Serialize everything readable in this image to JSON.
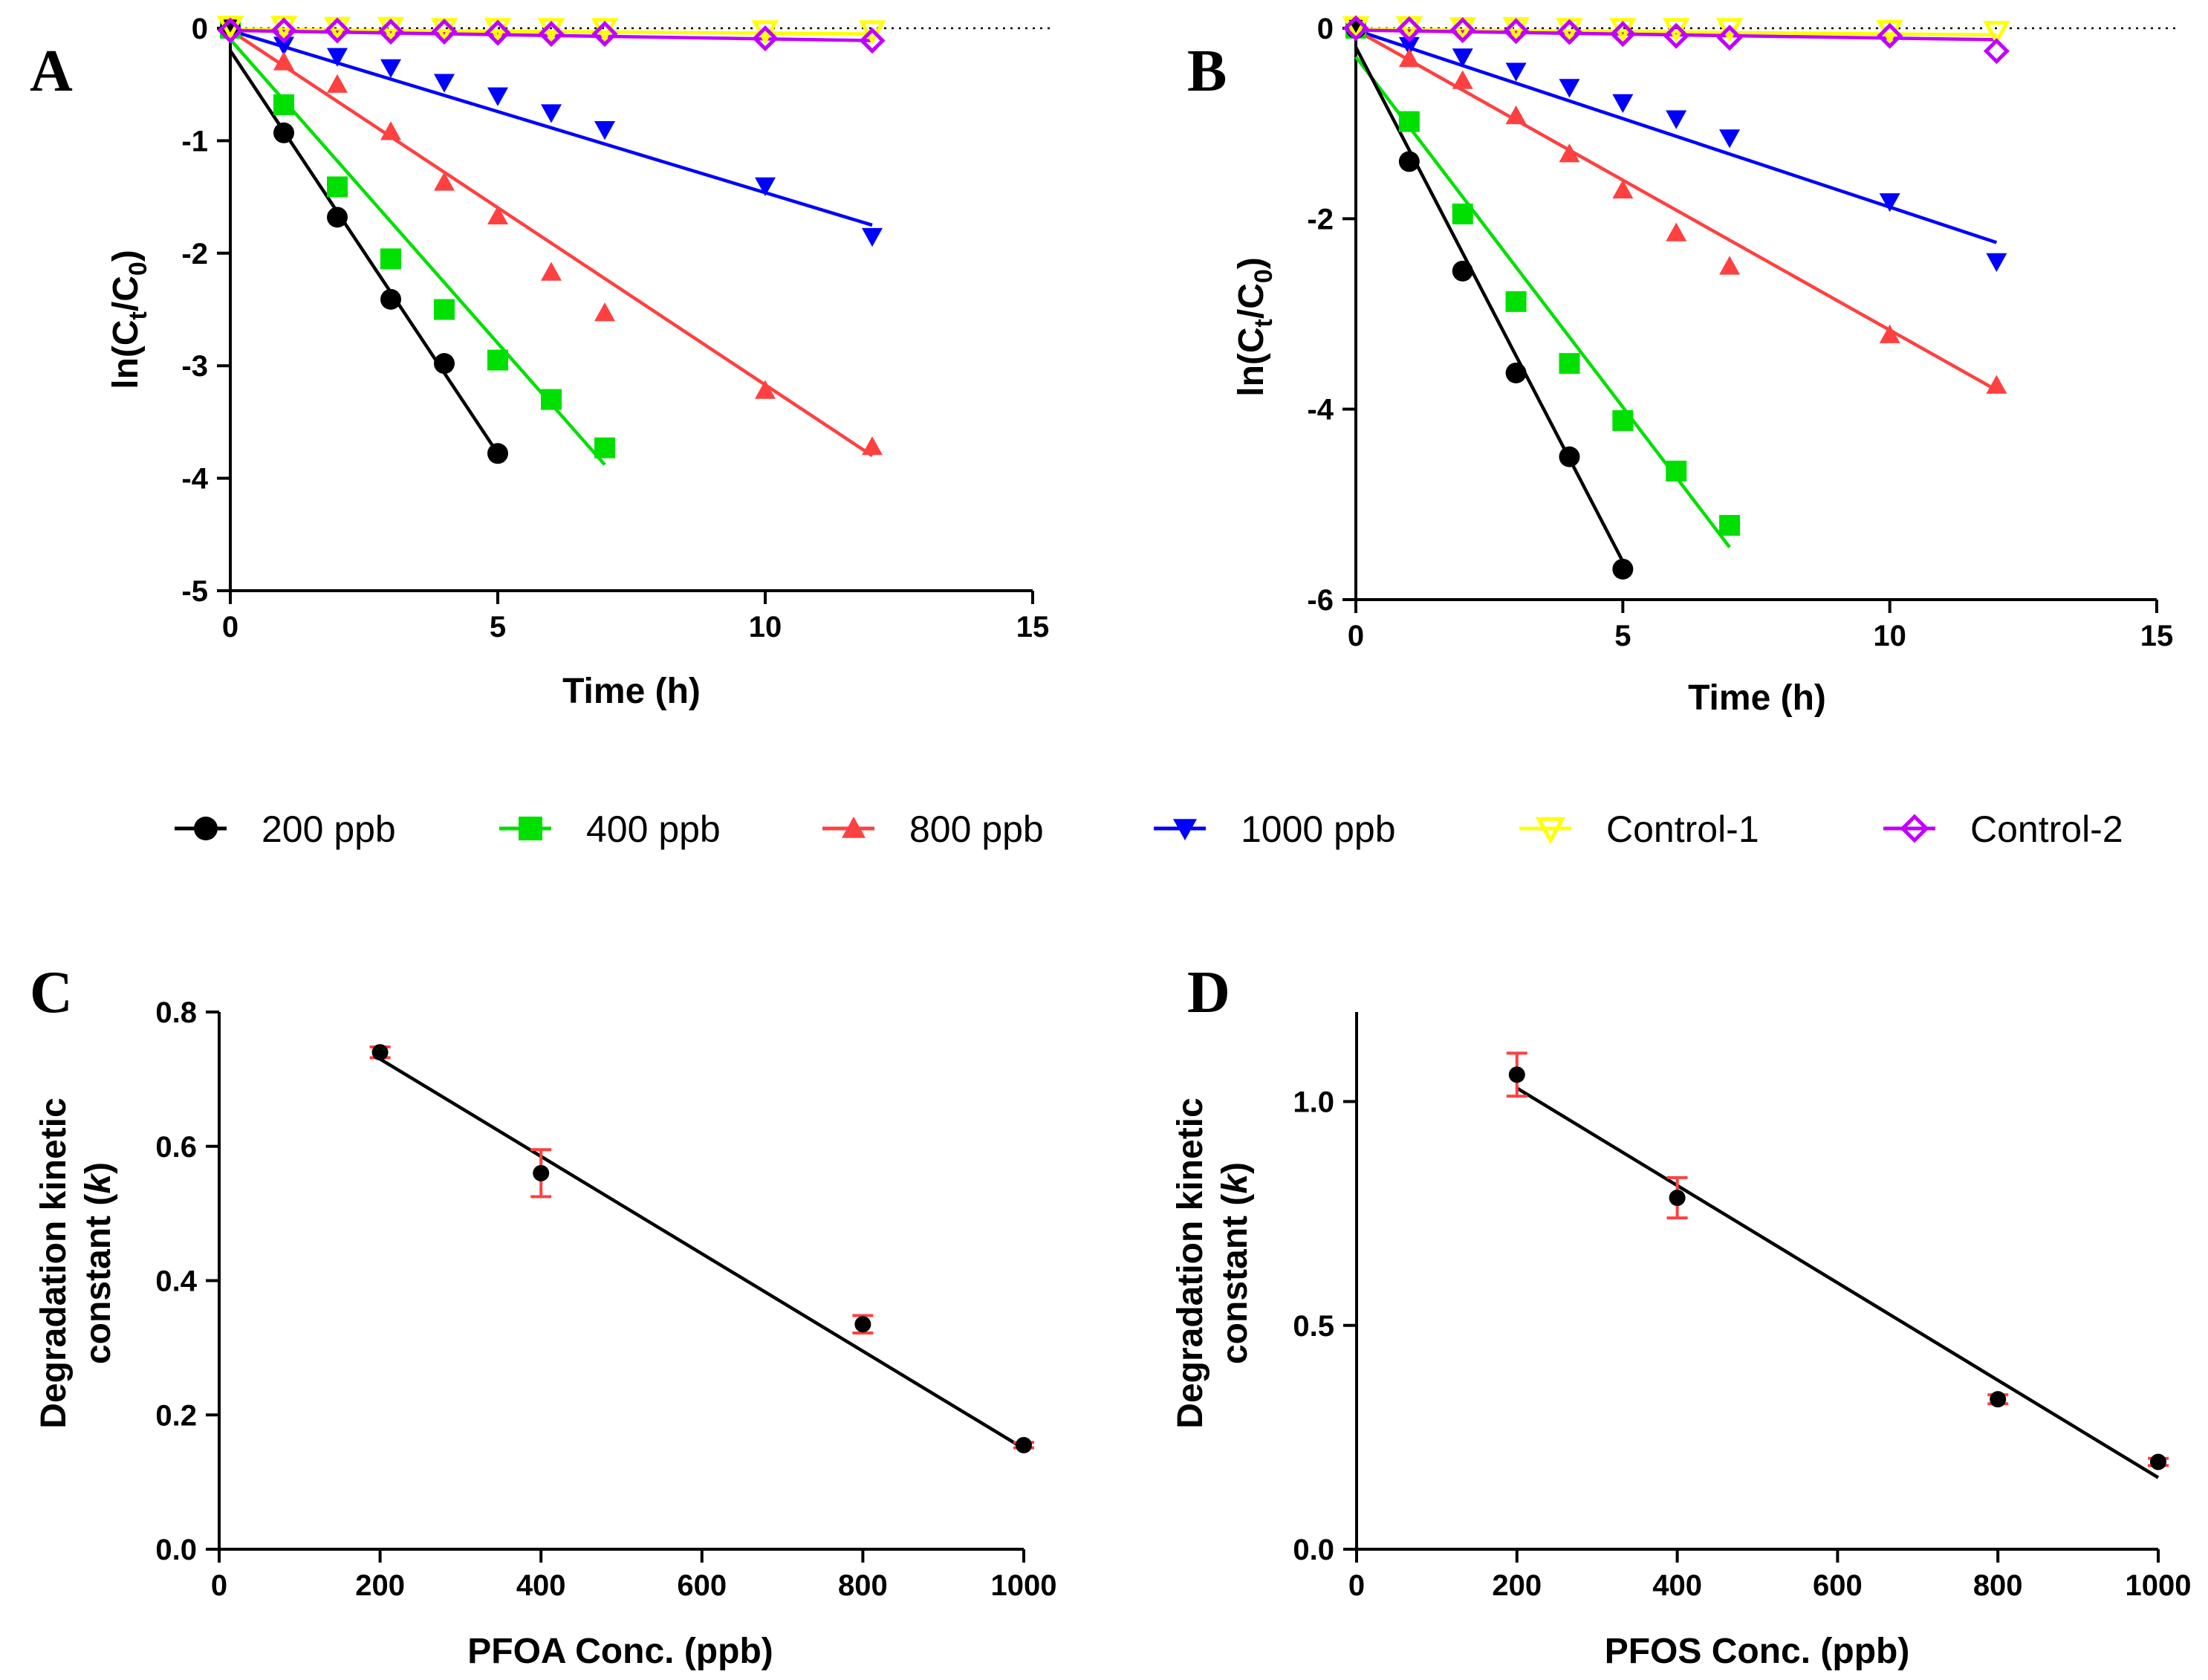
{
  "chart_data": [
    {
      "panel": "A",
      "type": "scatter",
      "xlabel": "Time (h)",
      "ylabel": "ln(Ct/C0)",
      "ylabel_main": "ln(C",
      "ylabel_sub1": "t",
      "ylabel_mid": "/C",
      "ylabel_sub2": "0",
      "ylabel_end": ")",
      "xlim": [
        0,
        15
      ],
      "ylim": [
        -5,
        0
      ],
      "xticks": [
        0,
        5,
        10,
        15
      ],
      "yticks": [
        0,
        -1,
        -2,
        -3,
        -4,
        -5
      ],
      "reference_line_y": 0,
      "series": [
        {
          "name": "200 ppb",
          "color": "#000000",
          "marker": "circle",
          "x": [
            0,
            1,
            2,
            3,
            4,
            5
          ],
          "y": [
            0,
            -0.93,
            -1.68,
            -2.41,
            -2.98,
            -3.78
          ],
          "fit": [
            [
              0,
              -0.2
            ],
            [
              5,
              -3.78
            ]
          ]
        },
        {
          "name": "400 ppb",
          "color": "#00e000",
          "marker": "square",
          "x": [
            0,
            1,
            2,
            3,
            4,
            5,
            6,
            7
          ],
          "y": [
            0,
            -0.68,
            -1.41,
            -2.05,
            -2.5,
            -2.95,
            -3.3,
            -3.73
          ],
          "fit": [
            [
              0,
              -0.1
            ],
            [
              7,
              -3.88
            ]
          ]
        },
        {
          "name": "800 ppb",
          "color": "#ff4040",
          "marker": "triangle-up",
          "x": [
            0,
            1,
            2,
            3,
            4,
            5,
            6,
            7,
            10,
            12
          ],
          "y": [
            0,
            -0.3,
            -0.5,
            -0.92,
            -1.37,
            -1.67,
            -2.17,
            -2.53,
            -3.22,
            -3.72
          ],
          "fit": [
            [
              0,
              -0.02
            ],
            [
              12,
              -3.8
            ]
          ]
        },
        {
          "name": "1000 ppb",
          "color": "#0000ff",
          "marker": "triangle-down",
          "x": [
            1,
            2,
            3,
            4,
            5,
            6,
            7,
            10,
            12
          ],
          "y": [
            -0.15,
            -0.25,
            -0.35,
            -0.48,
            -0.6,
            -0.75,
            -0.9,
            -1.4,
            -1.85
          ],
          "fit": [
            [
              0,
              -0.02
            ],
            [
              12,
              -1.75
            ]
          ]
        },
        {
          "name": "Control-1",
          "color": "#ffff00",
          "marker": "triangle-down-open",
          "x": [
            0,
            1,
            2,
            3,
            4,
            5,
            6,
            7,
            10,
            12
          ],
          "y": [
            0.02,
            0.02,
            0.01,
            0.01,
            0.0,
            0.0,
            0.0,
            0.0,
            -0.02,
            -0.02
          ],
          "fit": [
            [
              0,
              -0.01
            ],
            [
              12,
              -0.05
            ]
          ]
        },
        {
          "name": "Control-2",
          "color": "#c000ff",
          "marker": "diamond-open",
          "x": [
            0,
            1,
            2,
            3,
            4,
            5,
            6,
            7,
            10,
            12
          ],
          "y": [
            -0.02,
            -0.02,
            -0.02,
            -0.03,
            -0.03,
            -0.04,
            -0.05,
            -0.05,
            -0.09,
            -0.11
          ],
          "fit": [
            [
              0,
              -0.02
            ],
            [
              12,
              -0.11
            ]
          ]
        }
      ]
    },
    {
      "panel": "B",
      "type": "scatter",
      "xlabel": "Time (h)",
      "ylabel": "ln(Ct/C0)",
      "ylabel_main": "ln(C",
      "ylabel_sub1": "t",
      "ylabel_mid": "/C",
      "ylabel_sub2": "0",
      "ylabel_end": ")",
      "xlim": [
        0,
        15
      ],
      "ylim": [
        -6,
        0
      ],
      "xticks": [
        0,
        5,
        10,
        15
      ],
      "yticks": [
        0,
        -2,
        -4,
        -6
      ],
      "reference_line_y": 0,
      "series": [
        {
          "name": "200 ppb",
          "color": "#000000",
          "marker": "circle",
          "x": [
            0,
            1,
            2,
            3,
            4,
            5
          ],
          "y": [
            0,
            -1.4,
            -2.55,
            -3.62,
            -4.5,
            -5.68
          ],
          "fit": [
            [
              0,
              -0.2
            ],
            [
              5,
              -5.6
            ]
          ]
        },
        {
          "name": "400 ppb",
          "color": "#00e000",
          "marker": "square",
          "x": [
            0,
            1,
            2,
            3,
            4,
            5,
            6,
            7
          ],
          "y": [
            0,
            -0.98,
            -1.95,
            -2.87,
            -3.52,
            -4.12,
            -4.65,
            -5.22
          ],
          "fit": [
            [
              0,
              -0.3
            ],
            [
              7,
              -5.45
            ]
          ]
        },
        {
          "name": "800 ppb",
          "color": "#ff4040",
          "marker": "triangle-up",
          "x": [
            0,
            1,
            2,
            3,
            4,
            5,
            6,
            7,
            10,
            12
          ],
          "y": [
            0,
            -0.32,
            -0.55,
            -0.92,
            -1.32,
            -1.7,
            -2.15,
            -2.5,
            -3.22,
            -3.75
          ],
          "fit": [
            [
              0,
              -0.02
            ],
            [
              12,
              -3.8
            ]
          ]
        },
        {
          "name": "1000 ppb",
          "color": "#0000ff",
          "marker": "triangle-down",
          "x": [
            1,
            2,
            3,
            4,
            5,
            6,
            7,
            10,
            12
          ],
          "y": [
            -0.18,
            -0.3,
            -0.45,
            -0.62,
            -0.78,
            -0.95,
            -1.15,
            -1.82,
            -2.45
          ],
          "fit": [
            [
              0,
              -0.02
            ],
            [
              12,
              -2.25
            ]
          ]
        },
        {
          "name": "Control-1",
          "color": "#ffff00",
          "marker": "triangle-down-open",
          "x": [
            0,
            1,
            2,
            3,
            4,
            5,
            6,
            7,
            10,
            12
          ],
          "y": [
            0.02,
            0.02,
            0.01,
            0.01,
            0.0,
            0.0,
            0.0,
            0.0,
            -0.02,
            -0.03
          ],
          "fit": [
            [
              0,
              -0.01
            ],
            [
              12,
              -0.07
            ]
          ]
        },
        {
          "name": "Control-2",
          "color": "#c000ff",
          "marker": "diamond-open",
          "x": [
            0,
            1,
            2,
            3,
            4,
            5,
            6,
            7,
            10,
            12
          ],
          "y": [
            0.0,
            -0.01,
            -0.02,
            -0.03,
            -0.04,
            -0.06,
            -0.08,
            -0.1,
            -0.08,
            -0.24
          ],
          "fit": [
            [
              0,
              -0.02
            ],
            [
              12,
              -0.12
            ]
          ]
        }
      ]
    },
    {
      "panel": "C",
      "type": "scatter",
      "xlabel": "PFOA Conc. (ppb)",
      "ylabel_line1": "Degradation kinetic",
      "ylabel_line2": "constant (",
      "ylabel_k": "k",
      "ylabel_end": ")",
      "xlim": [
        0,
        1000
      ],
      "ylim": [
        0,
        0.8
      ],
      "xticks": [
        0,
        200,
        400,
        600,
        800,
        1000
      ],
      "yticks": [
        0.0,
        0.2,
        0.4,
        0.6,
        0.8
      ],
      "ytick_labels": [
        "0.0",
        "0.2",
        "0.4",
        "0.6",
        "0.8"
      ],
      "x": [
        200,
        400,
        800,
        1000
      ],
      "y": [
        0.74,
        0.56,
        0.335,
        0.155
      ],
      "error": [
        0.008,
        0.035,
        0.013,
        0.004
      ],
      "fit": [
        [
          200,
          0.73
        ],
        [
          1000,
          0.15
        ]
      ],
      "point_color": "#000000",
      "error_color": "#ff4040"
    },
    {
      "panel": "D",
      "type": "scatter",
      "xlabel": "PFOS Conc. (ppb)",
      "ylabel_line1": "Degradation kinetic",
      "ylabel_line2": "constant (",
      "ylabel_k": "k",
      "ylabel_end": ")",
      "xlim": [
        0,
        1000
      ],
      "ylim": [
        0,
        1.2
      ],
      "xticks": [
        0,
        200,
        400,
        600,
        800,
        1000
      ],
      "yticks": [
        0.0,
        0.5,
        1.0
      ],
      "ytick_labels": [
        "0.0",
        "0.5",
        "1.0"
      ],
      "x": [
        200,
        400,
        800,
        1000
      ],
      "y": [
        1.06,
        0.785,
        0.335,
        0.195
      ],
      "error": [
        0.048,
        0.045,
        0.01,
        0.008
      ],
      "fit": [
        [
          200,
          1.03
        ],
        [
          1000,
          0.16
        ]
      ],
      "point_color": "#000000",
      "error_color": "#ff4040"
    }
  ],
  "legend": [
    {
      "label": "200 ppb",
      "color": "#000000",
      "marker": "circle"
    },
    {
      "label": "400 ppb",
      "color": "#00e000",
      "marker": "square"
    },
    {
      "label": "800 ppb",
      "color": "#ff4040",
      "marker": "triangle-up"
    },
    {
      "label": "1000 ppb",
      "color": "#0000ff",
      "marker": "triangle-down"
    },
    {
      "label": "Control-1",
      "color": "#ffff00",
      "marker": "triangle-down-open"
    },
    {
      "label": "Control-2",
      "color": "#c000ff",
      "marker": "diamond-open"
    }
  ]
}
